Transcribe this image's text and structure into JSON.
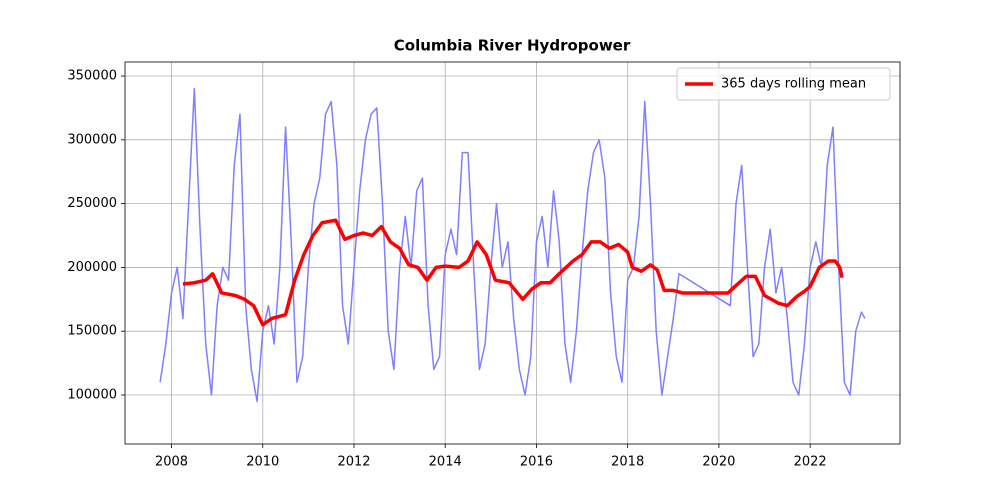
{
  "chart_data": {
    "type": "line",
    "title": "Columbia River Hydropower",
    "xlim": [
      2006.98,
      2023.97
    ],
    "ylim": [
      61600,
      361000
    ],
    "xticks": [
      2008,
      2010,
      2012,
      2014,
      2016,
      2018,
      2020,
      2022
    ],
    "yticks": [
      100000,
      150000,
      200000,
      250000,
      300000,
      350000
    ],
    "grid": true,
    "legend": "upper right",
    "series": [
      {
        "color": "#7f7fff",
        "x": [
          2007.75,
          2007.875,
          2008.0,
          2008.125,
          2008.25,
          2008.375,
          2008.5,
          2008.625,
          2008.75,
          2008.875,
          2009.0,
          2009.125,
          2009.25,
          2009.375,
          2009.5,
          2009.625,
          2009.75,
          2009.875,
          2010.0,
          2010.125,
          2010.25,
          2010.375,
          2010.5,
          2010.625,
          2010.75,
          2010.875,
          2011.0,
          2011.125,
          2011.25,
          2011.375,
          2011.5,
          2011.625,
          2011.75,
          2011.875,
          2012.0,
          2012.125,
          2012.25,
          2012.375,
          2012.5,
          2012.625,
          2012.75,
          2012.875,
          2013.0,
          2013.125,
          2013.25,
          2013.375,
          2013.5,
          2013.625,
          2013.75,
          2013.875,
          2014.0,
          2014.125,
          2014.25,
          2014.375,
          2014.5,
          2014.625,
          2014.75,
          2014.875,
          2015.0,
          2015.125,
          2015.25,
          2015.375,
          2015.5,
          2015.625,
          2015.75,
          2015.875,
          2016.0,
          2016.125,
          2016.25,
          2016.375,
          2016.5,
          2016.625,
          2016.75,
          2016.875,
          2017.0,
          2017.125,
          2017.25,
          2017.375,
          2017.5,
          2017.625,
          2017.75,
          2017.875,
          2018.0,
          2018.125,
          2018.25,
          2018.375,
          2018.5,
          2018.625,
          2018.75,
          2018.875,
          2019.0,
          2019.125,
          2020.25,
          2020.375,
          2020.5,
          2020.625,
          2020.75,
          2020.875,
          2021.0,
          2021.125,
          2021.25,
          2021.375,
          2021.5,
          2021.625,
          2021.75,
          2021.875,
          2022.0,
          2022.125,
          2022.25,
          2022.375,
          2022.5,
          2022.625,
          2022.75,
          2022.875,
          2023.0,
          2023.125,
          2023.2
        ],
        "values": [
          110000,
          140000,
          180000,
          200000,
          160000,
          250000,
          340000,
          230000,
          140000,
          100000,
          170000,
          200000,
          190000,
          280000,
          320000,
          170000,
          120000,
          95000,
          150000,
          170000,
          140000,
          200000,
          310000,
          220000,
          110000,
          130000,
          200000,
          250000,
          270000,
          320000,
          330000,
          280000,
          170000,
          140000,
          200000,
          260000,
          300000,
          320000,
          325000,
          250000,
          150000,
          120000,
          200000,
          240000,
          200000,
          260000,
          270000,
          170000,
          120000,
          130000,
          210000,
          230000,
          210000,
          290000,
          290000,
          200000,
          120000,
          140000,
          200000,
          250000,
          200000,
          220000,
          160000,
          120000,
          100000,
          130000,
          220000,
          240000,
          200000,
          260000,
          220000,
          140000,
          110000,
          150000,
          210000,
          260000,
          290000,
          300000,
          270000,
          180000,
          130000,
          110000,
          190000,
          200000,
          240000,
          330000,
          250000,
          150000,
          100000,
          130000,
          160000,
          195000,
          170000,
          250000,
          280000,
          200000,
          130000,
          140000,
          200000,
          230000,
          180000,
          200000,
          160000,
          110000,
          100000,
          140000,
          200000,
          220000,
          200000,
          280000,
          310000,
          200000,
          110000,
          100000,
          150000,
          165000,
          160000
        ]
      },
      {
        "name": "365 days rolling mean",
        "color": "#ff0000",
        "x": [
          2008.25,
          2008.5,
          2008.75,
          2008.9,
          2009.1,
          2009.4,
          2009.6,
          2009.8,
          2010.0,
          2010.2,
          2010.5,
          2010.7,
          2010.9,
          2011.1,
          2011.3,
          2011.6,
          2011.8,
          2012.0,
          2012.2,
          2012.4,
          2012.6,
          2012.8,
          2013.0,
          2013.2,
          2013.4,
          2013.6,
          2013.8,
          2014.0,
          2014.3,
          2014.5,
          2014.7,
          2014.9,
          2015.1,
          2015.4,
          2015.7,
          2015.9,
          2016.1,
          2016.3,
          2016.5,
          2016.8,
          2017.0,
          2017.2,
          2017.4,
          2017.6,
          2017.8,
          2018.0,
          2018.1,
          2018.3,
          2018.5,
          2018.65,
          2018.8,
          2019.0,
          2019.2,
          2019.8,
          2020.2,
          2020.35,
          2020.6,
          2020.8,
          2021.0,
          2021.3,
          2021.5,
          2021.7,
          2021.9,
          2022.0,
          2022.2,
          2022.4,
          2022.55,
          2022.65,
          2022.7
        ],
        "values": [
          187000,
          188000,
          190000,
          195000,
          180000,
          178000,
          175000,
          170000,
          155000,
          160000,
          163000,
          190000,
          210000,
          225000,
          235000,
          237000,
          222000,
          225000,
          227000,
          225000,
          232000,
          220000,
          215000,
          202000,
          200000,
          190000,
          200000,
          201000,
          200000,
          205000,
          220000,
          210000,
          190000,
          188000,
          175000,
          183000,
          188000,
          188000,
          195000,
          205000,
          210000,
          220000,
          220000,
          215000,
          218000,
          212000,
          200000,
          197000,
          202000,
          198000,
          182000,
          182000,
          180000,
          180000,
          180000,
          185000,
          193000,
          193000,
          178000,
          172000,
          170000,
          177000,
          182000,
          185000,
          200000,
          205000,
          205000,
          200000,
          192000
        ]
      }
    ]
  }
}
